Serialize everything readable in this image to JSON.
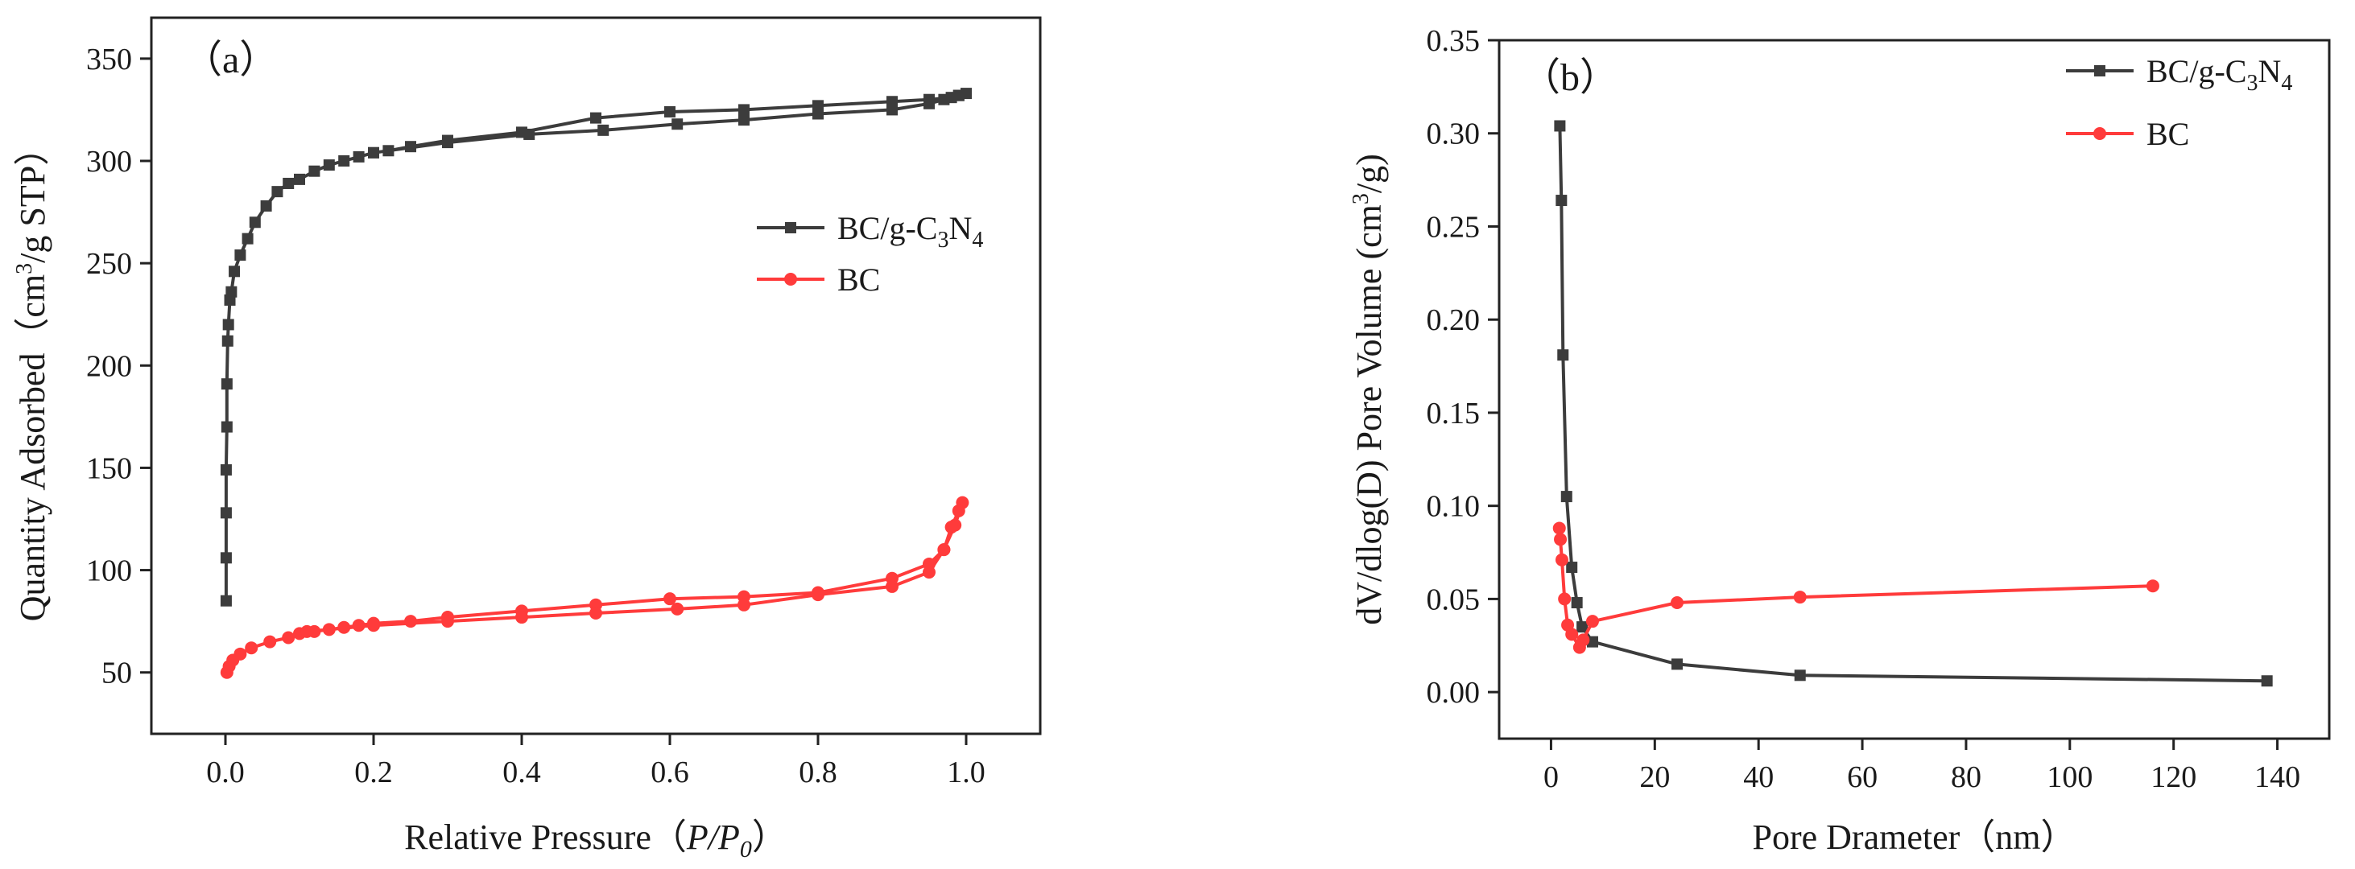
{
  "chart_data": [
    {
      "type": "line",
      "panel_label": "（a）",
      "xlabel": "Relative Pressure（P/P0）",
      "ylabel": "Quantity Adsorbed（cm3/g STP）",
      "xlim": [
        -0.1,
        1.1
      ],
      "ylim": [
        20,
        370
      ],
      "xticks": [
        0.0,
        0.2,
        0.4,
        0.6,
        0.8,
        1.0
      ],
      "xtick_labels": [
        "0.0",
        "0.2",
        "0.4",
        "0.6",
        "0.8",
        "1.0"
      ],
      "yticks": [
        50,
        100,
        150,
        200,
        250,
        300,
        350
      ],
      "ytick_labels": [
        "50",
        "100",
        "150",
        "200",
        "250",
        "300",
        "350"
      ],
      "legend_position": "right-middle",
      "series": [
        {
          "name": "BC/g-C3N4",
          "legend_main": "BC/g-C",
          "legend_sub1": "3",
          "legend_mid": "N",
          "legend_sub2": "4",
          "color": "#3c3c3c",
          "marker": "square",
          "points": [
            [
              0.001,
              85
            ],
            [
              0.001,
              106
            ],
            [
              0.001,
              128
            ],
            [
              0.001,
              149
            ],
            [
              0.002,
              170
            ],
            [
              0.002,
              191
            ],
            [
              0.003,
              212
            ],
            [
              0.004,
              220
            ],
            [
              0.006,
              232
            ],
            [
              0.008,
              236
            ],
            [
              0.012,
              246
            ],
            [
              0.02,
              254
            ],
            [
              0.03,
              262
            ],
            [
              0.04,
              270
            ],
            [
              0.055,
              278
            ],
            [
              0.07,
              285
            ],
            [
              0.085,
              289
            ],
            [
              0.1,
              291
            ],
            [
              0.12,
              295
            ],
            [
              0.14,
              298
            ],
            [
              0.16,
              300
            ],
            [
              0.18,
              302
            ],
            [
              0.2,
              304
            ],
            [
              0.22,
              305
            ],
            [
              0.25,
              307
            ],
            [
              0.3,
              310
            ],
            [
              0.4,
              314
            ],
            [
              0.5,
              321
            ],
            [
              0.6,
              324
            ],
            [
              0.7,
              325
            ],
            [
              0.8,
              327
            ],
            [
              0.9,
              329
            ],
            [
              0.95,
              330
            ],
            [
              0.98,
              331
            ],
            [
              0.99,
              332
            ],
            [
              1.0,
              333
            ],
            [
              0.99,
              332
            ],
            [
              0.97,
              330
            ],
            [
              0.95,
              328
            ],
            [
              0.9,
              325
            ],
            [
              0.8,
              323
            ],
            [
              0.7,
              320
            ],
            [
              0.61,
              318
            ],
            [
              0.51,
              315
            ],
            [
              0.41,
              313
            ],
            [
              0.3,
              309
            ],
            [
              0.2,
              304
            ]
          ]
        },
        {
          "name": "BC",
          "legend_main": "BC",
          "color": "#ff3b3b",
          "marker": "circle",
          "points": [
            [
              0.002,
              50
            ],
            [
              0.005,
              53
            ],
            [
              0.01,
              56
            ],
            [
              0.02,
              59
            ],
            [
              0.035,
              62
            ],
            [
              0.06,
              65
            ],
            [
              0.085,
              67
            ],
            [
              0.1,
              69
            ],
            [
              0.12,
              70
            ],
            [
              0.14,
              71
            ],
            [
              0.16,
              72
            ],
            [
              0.18,
              73
            ],
            [
              0.2,
              74
            ],
            [
              0.25,
              75
            ],
            [
              0.3,
              77
            ],
            [
              0.4,
              80
            ],
            [
              0.5,
              83
            ],
            [
              0.6,
              86
            ],
            [
              0.7,
              87
            ],
            [
              0.8,
              89
            ],
            [
              0.9,
              96
            ],
            [
              0.95,
              103
            ],
            [
              0.97,
              110
            ],
            [
              0.985,
              122
            ],
            [
              0.995,
              133
            ],
            [
              0.99,
              129
            ],
            [
              0.98,
              121
            ],
            [
              0.97,
              110
            ],
            [
              0.95,
              99
            ],
            [
              0.9,
              92
            ],
            [
              0.8,
              88
            ],
            [
              0.7,
              83
            ],
            [
              0.61,
              81
            ],
            [
              0.5,
              79
            ],
            [
              0.4,
              77
            ],
            [
              0.3,
              75
            ],
            [
              0.2,
              73
            ],
            [
              0.11,
              70
            ]
          ]
        }
      ]
    },
    {
      "type": "line",
      "panel_label": "（b）",
      "xlabel": "Pore Drameter（nm）",
      "ylabel": "dV/dlog(D) Pore Volume (cm3/g)",
      "xlim": [
        -10,
        150
      ],
      "ylim": [
        -0.025,
        0.35
      ],
      "xticks": [
        0,
        20,
        40,
        60,
        80,
        100,
        120,
        140
      ],
      "xtick_labels": [
        "0",
        "20",
        "40",
        "60",
        "80",
        "100",
        "120",
        "140"
      ],
      "yticks": [
        0.0,
        0.05,
        0.1,
        0.15,
        0.2,
        0.25,
        0.3,
        0.35
      ],
      "ytick_labels": [
        "0.00",
        "0.05",
        "0.10",
        "0.15",
        "0.20",
        "0.25",
        "0.30",
        "0.35"
      ],
      "legend_position": "top-right",
      "series": [
        {
          "name": "BC/g-C3N4",
          "legend_main": "BC/g-C",
          "legend_sub1": "3",
          "legend_mid": "N",
          "legend_sub2": "4",
          "color": "#3c3c3c",
          "marker": "square",
          "points": [
            [
              1.7,
              0.304
            ],
            [
              2.0,
              0.264
            ],
            [
              2.3,
              0.181
            ],
            [
              3.0,
              0.105
            ],
            [
              4.0,
              0.067
            ],
            [
              5.0,
              0.048
            ],
            [
              6.0,
              0.035
            ],
            [
              8.0,
              0.027
            ],
            [
              24.3,
              0.015
            ],
            [
              48.0,
              0.009
            ],
            [
              138.0,
              0.006
            ]
          ]
        },
        {
          "name": "BC",
          "legend_main": "BC",
          "color": "#ff3b3b",
          "marker": "circle",
          "points": [
            [
              1.6,
              0.088
            ],
            [
              1.8,
              0.082
            ],
            [
              2.1,
              0.071
            ],
            [
              2.6,
              0.05
            ],
            [
              3.2,
              0.036
            ],
            [
              4.0,
              0.031
            ],
            [
              5.5,
              0.024
            ],
            [
              6.2,
              0.028
            ],
            [
              8.0,
              0.038
            ],
            [
              24.3,
              0.048
            ],
            [
              48.0,
              0.051
            ],
            [
              116.0,
              0.057
            ]
          ]
        }
      ]
    }
  ]
}
